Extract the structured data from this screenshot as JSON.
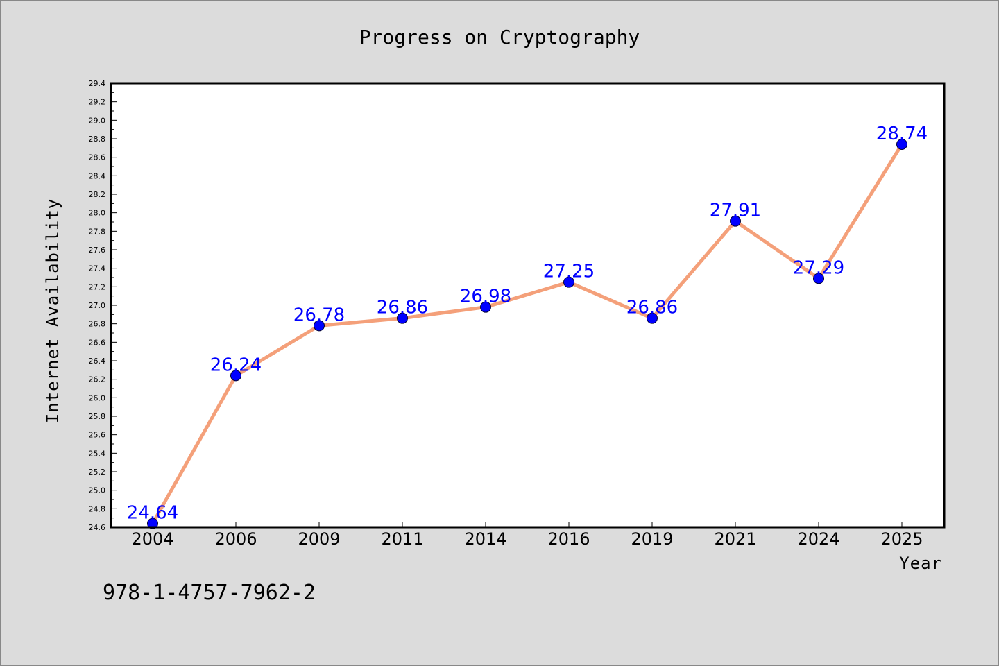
{
  "chart_data": {
    "type": "line",
    "title": "Progress on Cryptography",
    "xlabel": "Year",
    "ylabel": "Internet Availability",
    "categories": [
      "2004",
      "2006",
      "2009",
      "2011",
      "2014",
      "2016",
      "2019",
      "2021",
      "2024",
      "2025"
    ],
    "values": [
      24.64,
      26.24,
      26.78,
      26.86,
      26.98,
      27.25,
      26.86,
      27.91,
      27.29,
      28.74
    ],
    "data_labels": [
      "24.64",
      "26.24",
      "26.78",
      "26.86",
      "26.98",
      "27.25",
      "26.86",
      "27.91",
      "27.29",
      "28.74"
    ],
    "ylim": [
      24.6,
      29.4
    ],
    "yticks": [
      "24.6",
      "24.8",
      "25.0",
      "25.2",
      "25.4",
      "25.6",
      "25.8",
      "26.0",
      "26.2",
      "26.4",
      "26.6",
      "26.8",
      "27.0",
      "27.2",
      "27.4",
      "27.6",
      "27.8",
      "28.0",
      "28.2",
      "28.4",
      "28.6",
      "28.8",
      "29.0",
      "29.2",
      "29.4"
    ],
    "grid": false,
    "colors": {
      "background": "#dcdcdc",
      "plot_area": "#ffffff",
      "line": "#f4a07a",
      "marker": "#0000ff",
      "data_label": "#0000ff"
    }
  },
  "footnote": "978-1-4757-7962-2"
}
